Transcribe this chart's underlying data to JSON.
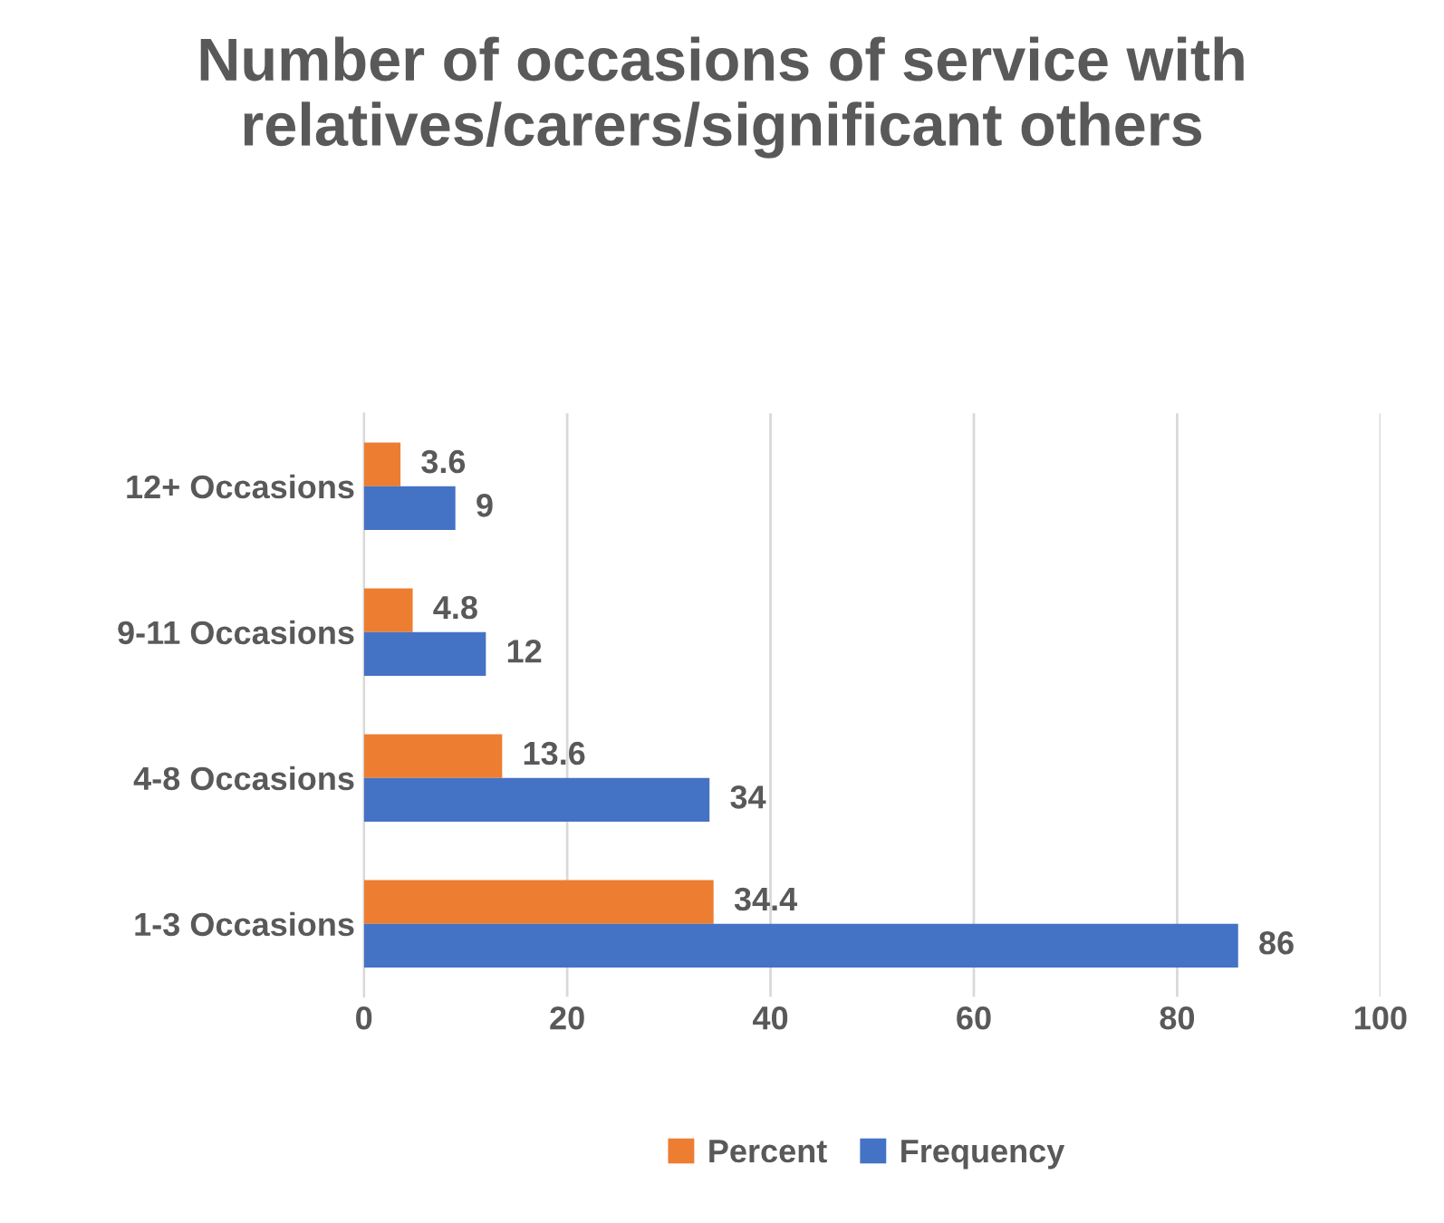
{
  "chart_data": {
    "type": "bar",
    "orientation": "horizontal",
    "title": "Number of occasions of service with relatives/carers/significant others",
    "categories": [
      "12+ Occasions",
      "9-11 Occasions",
      "4-8 Occasions",
      "1-3 Occasions"
    ],
    "series": [
      {
        "name": "Percent",
        "color": "#ed7d31",
        "values": [
          3.6,
          4.8,
          13.6,
          34.4
        ]
      },
      {
        "name": "Frequency",
        "color": "#4472c4",
        "values": [
          9,
          12,
          34,
          86
        ]
      }
    ],
    "xlim": [
      0,
      100
    ],
    "xticks": [
      0,
      20,
      40,
      60,
      80,
      100
    ],
    "grid": "x",
    "legend": "bottom",
    "data_labels": true
  }
}
